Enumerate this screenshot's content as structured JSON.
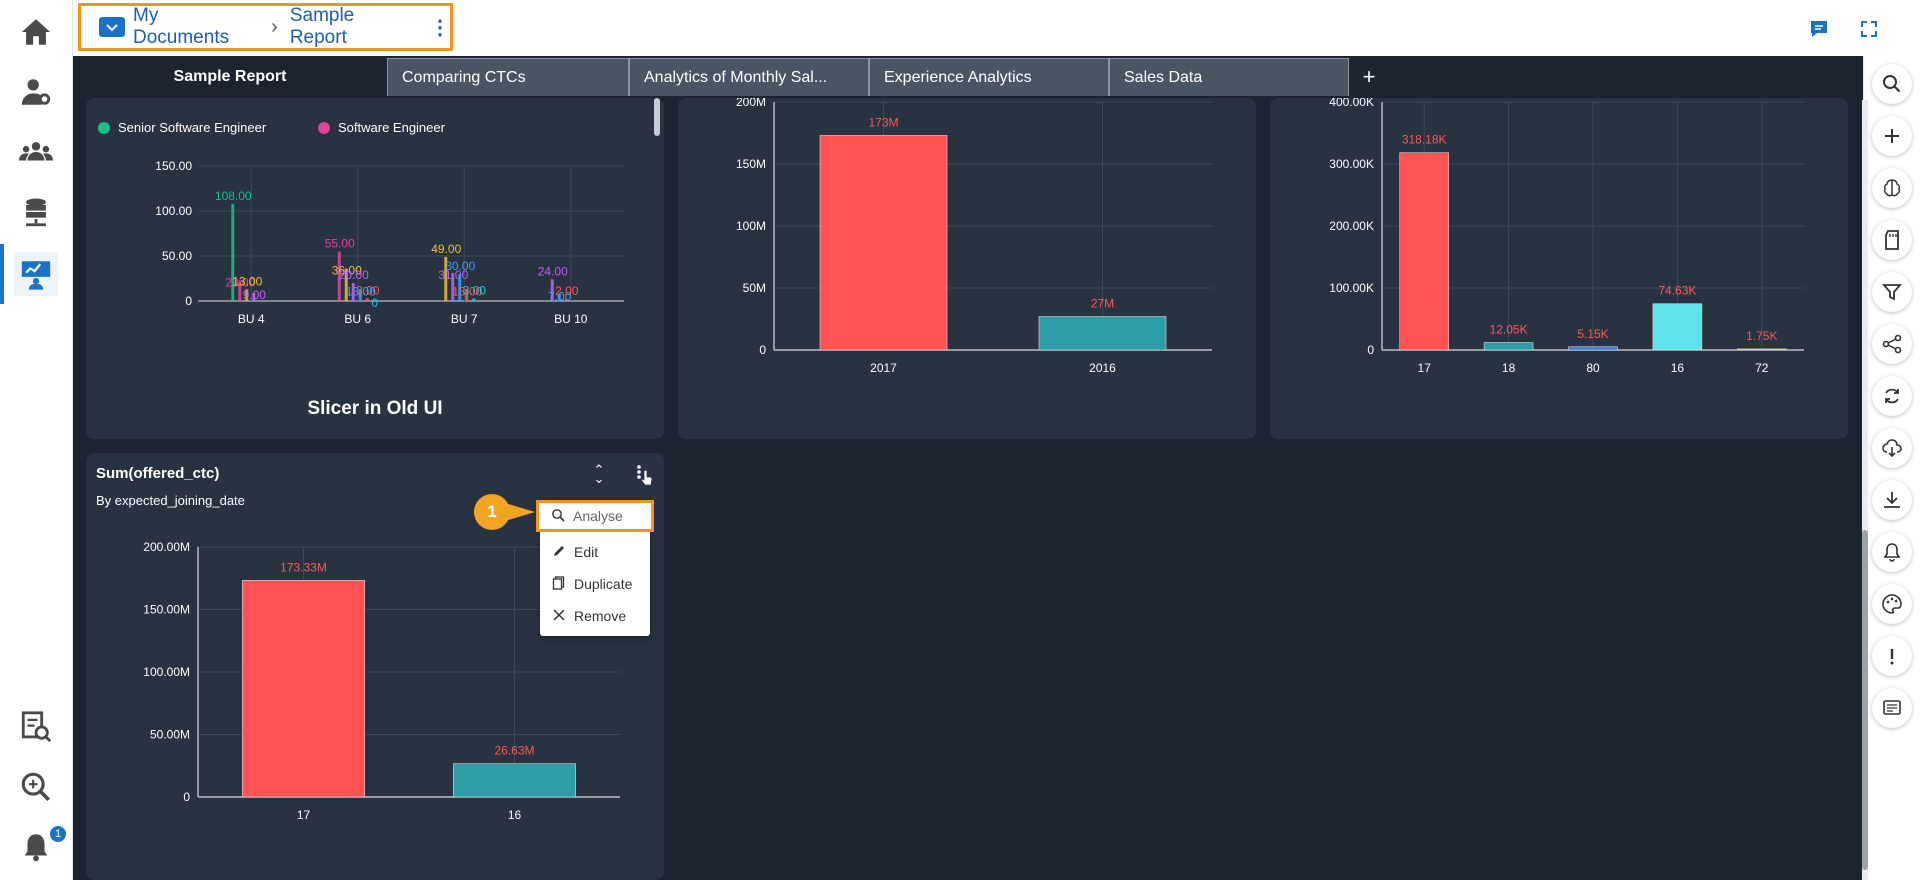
{
  "breadcrumb": {
    "folder": "My Documents",
    "separator": "›",
    "report": "Sample Report"
  },
  "tabs": [
    {
      "label": "Sample Report",
      "active": true
    },
    {
      "label": "Comparing CTCs",
      "active": false
    },
    {
      "label": "Analytics of Monthly Sal...",
      "active": false
    },
    {
      "label": "Experience Analytics",
      "active": false
    },
    {
      "label": "Sales Data",
      "active": false
    }
  ],
  "add_tab_label": "+",
  "left_nav": [
    "home-icon",
    "user-settings-icon",
    "users-group-icon",
    "database-icon",
    "presentation-icon",
    "report-search-icon",
    "search-data-icon",
    "notification-bell-icon"
  ],
  "notification_count": "1",
  "right_rail": [
    "search-icon",
    "add-icon",
    "brain-icon",
    "sd-card-icon",
    "filter-icon",
    "share-icon",
    "refresh-icon",
    "cloud-download-icon",
    "download-icon",
    "bell-icon",
    "palette-icon",
    "alert-icon",
    "message-icon"
  ],
  "slicer_panel": {
    "legend": [
      {
        "label": "Senior Software Engineer",
        "color": "#1bbf8a"
      },
      {
        "label": "Software Engineer",
        "color": "#e0459b"
      }
    ],
    "footer_title": "Slicer in Old UI"
  },
  "widget": {
    "title": "Sum(offered_ctc)",
    "subtitle": "By expected_joining_date"
  },
  "context_menu": {
    "step": "1",
    "items": [
      {
        "label": "Analyse",
        "icon": "search-icon"
      },
      {
        "label": "Edit",
        "icon": "pencil-icon"
      },
      {
        "label": "Duplicate",
        "icon": "copy-icon"
      },
      {
        "label": "Remove",
        "icon": "close-icon"
      }
    ]
  },
  "colors": {
    "accent": "#1a73c8",
    "highlight": "#f2961f",
    "bar_red": "#ff5252",
    "bar_teal": "#2b9ea6",
    "bar_cyan": "#5ee3ea",
    "label_red": "#ff5a5a"
  },
  "chart_data": [
    {
      "type": "bar",
      "chart_id": "slicer",
      "categories": [
        "BU 4",
        "BU 6",
        "BU 7",
        "BU 10"
      ],
      "ylim": [
        0,
        150
      ],
      "yticks": [
        "0",
        "50.00",
        "100.00",
        "150.00"
      ],
      "data_labels": [
        {
          "category": "BU 4",
          "labels": [
            "108.00",
            "23.00",
            "13.00",
            "9.00"
          ]
        },
        {
          "category": "BU 6",
          "labels": [
            "55.00",
            "36.00",
            "20.00",
            "13.00",
            "3.00",
            "0"
          ]
        },
        {
          "category": "BU 7",
          "labels": [
            "49.00",
            "31.00",
            "30.00",
            "13.00",
            "3.00"
          ]
        },
        {
          "category": "BU 10",
          "labels": [
            "24.00",
            "7.00",
            "2.00"
          ]
        }
      ],
      "label_colors": [
        "#1bbf8a",
        "#e0459b",
        "#f2c12e",
        "#c060ff",
        "#3aa0ff",
        "#ff5a5a",
        "#26c6da"
      ]
    },
    {
      "type": "bar",
      "chart_id": "year",
      "categories": [
        "2017",
        "2016"
      ],
      "values": [
        173,
        27
      ],
      "value_labels": [
        "173M",
        "27M"
      ],
      "ylim": [
        0,
        200
      ],
      "yticks": [
        "0",
        "50M",
        "100M",
        "150M",
        "200M"
      ],
      "colors": [
        "#ff5252",
        "#2b9ea6"
      ]
    },
    {
      "type": "bar",
      "chart_id": "codes",
      "categories": [
        "17",
        "18",
        "80",
        "16",
        "72"
      ],
      "values": [
        318.18,
        12.05,
        5.15,
        74.63,
        1.75
      ],
      "value_labels": [
        "318.18K",
        "12.05K",
        "5.15K",
        "74.63K",
        "1.75K"
      ],
      "ylim": [
        0,
        400
      ],
      "yticks": [
        "0",
        "100.00K",
        "200.00K",
        "300.00K",
        "400.00K"
      ],
      "colors": [
        "#ff5252",
        "#2b9ea6",
        "#3a7bd5",
        "#5ee3ea",
        "#f2c12e"
      ]
    },
    {
      "type": "bar",
      "chart_id": "offered",
      "categories": [
        "17",
        "16"
      ],
      "values": [
        173.33,
        26.63
      ],
      "value_labels": [
        "173.33M",
        "26.63M"
      ],
      "ylim": [
        0,
        200
      ],
      "yticks": [
        "0",
        "50.00M",
        "100.00M",
        "150.00M",
        "200.00M"
      ],
      "colors": [
        "#ff5252",
        "#2b9ea6"
      ]
    }
  ]
}
